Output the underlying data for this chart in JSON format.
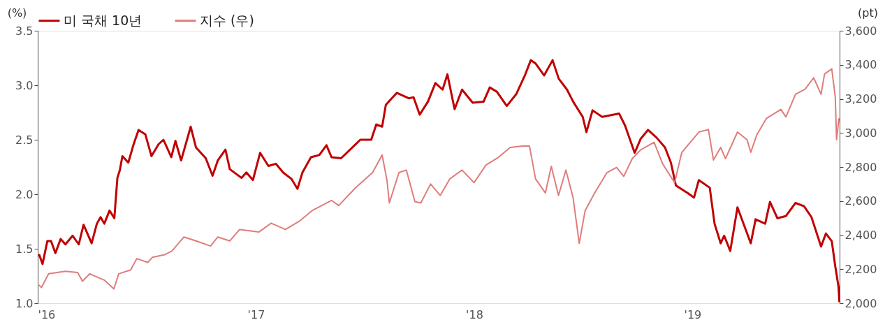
{
  "chart_data": {
    "type": "line",
    "ylabel": "(%)",
    "y2label": "(pt)",
    "xlim": [
      2016,
      2019.674
    ],
    "xticks": [
      {
        "value": 2016,
        "label": "'16"
      },
      {
        "value": 2017,
        "label": "'17"
      },
      {
        "value": 2018,
        "label": "'18"
      },
      {
        "value": 2019,
        "label": "'19"
      }
    ],
    "ylim": [
      1.0,
      3.5
    ],
    "yticks": [
      {
        "value": 1.0,
        "label": "1.0"
      },
      1.5,
      {
        "value": 2.0,
        "label": "2.0"
      },
      2.5,
      {
        "value": 3.0,
        "label": "3.0"
      },
      3.5
    ],
    "y2lim": [
      2000,
      3600
    ],
    "y2ticks": [
      {
        "value": 2000,
        "label": "2,000"
      },
      {
        "value": 2200,
        "label": "2,200"
      },
      {
        "value": 2400,
        "label": "2,400"
      },
      {
        "value": 2600,
        "label": "2,600"
      },
      {
        "value": 2800,
        "label": "2,800"
      },
      {
        "value": 3000,
        "label": "3,000"
      },
      {
        "value": 3200,
        "label": "3,200"
      },
      {
        "value": 3400,
        "label": "3,400"
      },
      {
        "value": 3600,
        "label": "3,600"
      }
    ],
    "grid": false,
    "legend": "top",
    "marker": "none",
    "line_style": "solid",
    "series": [
      {
        "name": "미 국채 10년",
        "color": "#c00000",
        "x": [
          2016.006,
          2016.022,
          2016.044,
          2016.061,
          2016.081,
          2016.105,
          2016.127,
          2016.16,
          2016.188,
          2016.21,
          2016.247,
          2016.271,
          2016.288,
          2016.305,
          2016.329,
          2016.351,
          2016.365,
          2016.376,
          2016.388,
          2016.415,
          2016.438,
          2016.462,
          2016.493,
          2016.521,
          2016.554,
          2016.576,
          2016.612,
          2016.631,
          2016.657,
          2016.701,
          2016.725,
          2016.77,
          2016.801,
          2016.825,
          2016.86,
          2016.88,
          2016.934,
          2016.956,
          2016.986,
          2017.019,
          2017.057,
          2017.091,
          2017.124,
          2017.163,
          2017.19,
          2017.213,
          2017.252,
          2017.29,
          2017.323,
          2017.346,
          2017.39,
          2017.478,
          2017.528,
          2017.551,
          2017.578,
          2017.595,
          2017.645,
          2017.7,
          2017.722,
          2017.75,
          2017.788,
          2017.822,
          2017.855,
          2017.877,
          2017.91,
          2017.944,
          2017.993,
          2018.043,
          2018.071,
          2018.104,
          2018.149,
          2018.193,
          2018.232,
          2018.259,
          2018.281,
          2018.32,
          2018.359,
          2018.387,
          2018.425,
          2018.453,
          2018.497,
          2018.514,
          2018.542,
          2018.586,
          2018.664,
          2018.691,
          2018.735,
          2018.763,
          2018.796,
          2018.835,
          2018.874,
          2018.901,
          2018.924,
          2018.979,
          2019.007,
          2019.029,
          2019.079,
          2019.101,
          2019.129,
          2019.145,
          2019.173,
          2019.206,
          2019.267,
          2019.289,
          2019.333,
          2019.355,
          2019.389,
          2019.428,
          2019.472,
          2019.511,
          2019.545,
          2019.589,
          2019.611,
          2019.638,
          2019.654,
          2019.669,
          2019.673
        ],
        "values": [
          1.45,
          1.36,
          1.57,
          1.57,
          1.46,
          1.59,
          1.54,
          1.62,
          1.54,
          1.72,
          1.55,
          1.73,
          1.79,
          1.73,
          1.85,
          1.78,
          2.15,
          2.22,
          2.35,
          2.29,
          2.45,
          2.59,
          2.55,
          2.35,
          2.46,
          2.5,
          2.34,
          2.49,
          2.31,
          2.62,
          2.43,
          2.33,
          2.17,
          2.31,
          2.41,
          2.23,
          2.15,
          2.2,
          2.13,
          2.38,
          2.26,
          2.28,
          2.2,
          2.14,
          2.05,
          2.2,
          2.34,
          2.36,
          2.45,
          2.34,
          2.33,
          2.5,
          2.5,
          2.64,
          2.62,
          2.82,
          2.93,
          2.88,
          2.89,
          2.73,
          2.85,
          3.02,
          2.96,
          3.1,
          2.78,
          2.96,
          2.84,
          2.85,
          2.98,
          2.94,
          2.81,
          2.92,
          3.09,
          3.23,
          3.2,
          3.09,
          3.23,
          3.06,
          2.96,
          2.85,
          2.71,
          2.57,
          2.77,
          2.71,
          2.74,
          2.63,
          2.38,
          2.51,
          2.59,
          2.52,
          2.43,
          2.29,
          2.08,
          2.01,
          1.97,
          2.13,
          2.06,
          1.73,
          1.55,
          1.62,
          1.48,
          1.88,
          1.55,
          1.77,
          1.73,
          1.93,
          1.78,
          1.8,
          1.92,
          1.89,
          1.79,
          1.52,
          1.64,
          1.57,
          1.34,
          1.15,
          1.01
        ]
      },
      {
        "name": "지수 (우)",
        "color": "#e07c7c",
        "axis": "y2",
        "x": [
          2016.006,
          2016.017,
          2016.05,
          2016.127,
          2016.183,
          2016.205,
          2016.238,
          2016.305,
          2016.349,
          2016.371,
          2016.426,
          2016.454,
          2016.504,
          2016.526,
          2016.581,
          2016.615,
          2016.67,
          2016.725,
          2016.792,
          2016.825,
          2016.88,
          2016.925,
          2017.013,
          2017.069,
          2017.135,
          2017.202,
          2017.257,
          2017.346,
          2017.379,
          2017.456,
          2017.534,
          2017.578,
          2017.6,
          2017.611,
          2017.655,
          2017.689,
          2017.728,
          2017.755,
          2017.8,
          2017.844,
          2017.888,
          2017.944,
          2017.999,
          2018.054,
          2018.11,
          2018.165,
          2018.22,
          2018.253,
          2018.281,
          2018.326,
          2018.353,
          2018.386,
          2018.42,
          2018.453,
          2018.481,
          2018.508,
          2018.552,
          2018.608,
          2018.652,
          2018.685,
          2018.724,
          2018.763,
          2018.824,
          2018.863,
          2018.918,
          2018.951,
          2019.029,
          2019.073,
          2019.096,
          2019.129,
          2019.151,
          2019.206,
          2019.25,
          2019.267,
          2019.295,
          2019.339,
          2019.405,
          2019.428,
          2019.472,
          2019.516,
          2019.555,
          2019.589,
          2019.605,
          2019.638,
          2019.654,
          2019.66,
          2019.671
        ],
        "values": [
          2107,
          2092,
          2173,
          2188,
          2181,
          2129,
          2173,
          2136,
          2084,
          2173,
          2196,
          2262,
          2240,
          2270,
          2285,
          2307,
          2389,
          2366,
          2336,
          2389,
          2366,
          2433,
          2418,
          2470,
          2433,
          2485,
          2544,
          2604,
          2574,
          2678,
          2767,
          2871,
          2723,
          2589,
          2767,
          2782,
          2597,
          2589,
          2700,
          2633,
          2730,
          2782,
          2708,
          2812,
          2856,
          2915,
          2923,
          2923,
          2730,
          2648,
          2804,
          2633,
          2782,
          2619,
          2352,
          2544,
          2648,
          2767,
          2797,
          2745,
          2849,
          2901,
          2945,
          2819,
          2708,
          2886,
          3005,
          3020,
          2841,
          2915,
          2849,
          3005,
          2960,
          2886,
          2990,
          3086,
          3138,
          3094,
          3227,
          3257,
          3324,
          3227,
          3346,
          3376,
          3213,
          2960,
          3086
        ]
      }
    ]
  }
}
